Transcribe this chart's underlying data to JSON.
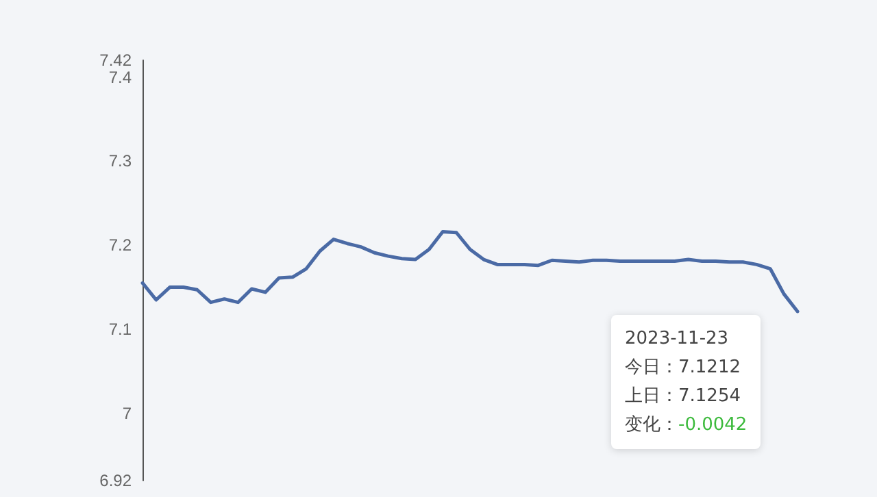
{
  "chart_data": {
    "type": "line",
    "categories": [
      null,
      null,
      null,
      null,
      null,
      null,
      null,
      null,
      null,
      null,
      null,
      null,
      null,
      null,
      null,
      null,
      null,
      null,
      null,
      null,
      null,
      null,
      null,
      null,
      null,
      null,
      null,
      null,
      null,
      null,
      null,
      null,
      null,
      null,
      null,
      null,
      null,
      null,
      null,
      null,
      null,
      null,
      null,
      null,
      null,
      null,
      null,
      null,
      null
    ],
    "series": [
      {
        "color": "#4a6aa5",
        "values": [
          7.155,
          7.135,
          7.15,
          7.15,
          7.147,
          7.132,
          7.136,
          7.132,
          7.148,
          7.144,
          7.161,
          7.162,
          7.172,
          7.193,
          7.207,
          7.202,
          7.198,
          7.191,
          7.187,
          7.184,
          7.183,
          7.195,
          7.216,
          7.215,
          7.195,
          7.183,
          7.177,
          7.177,
          7.177,
          7.176,
          7.182,
          7.181,
          7.18,
          7.182,
          7.182,
          7.181,
          7.181,
          7.181,
          7.181,
          7.181,
          7.183,
          7.181,
          7.181,
          7.18,
          7.18,
          7.177,
          7.172,
          7.142,
          7.1212
        ]
      }
    ],
    "ylim": [
      6.92,
      7.42
    ],
    "yticks": [
      6.92,
      7,
      7.1,
      7.2,
      7.3,
      7.4,
      7.42
    ],
    "tick_labels": "y",
    "grid": false,
    "marker": "none",
    "line_style": "solid",
    "annotations": [
      "2023-11-23",
      "今日：7.1212",
      "上日：7.1254",
      "变化：-0.0042"
    ]
  }
}
